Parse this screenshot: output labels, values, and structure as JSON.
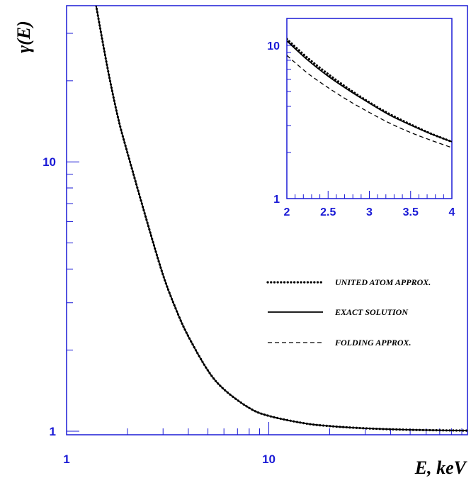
{
  "chart_data": [
    {
      "type": "line",
      "xlabel": "E, keV",
      "ylabel": "γ(E)",
      "xscale": "log",
      "yscale": "log",
      "xlim": [
        1,
        96
      ],
      "ylim": [
        0.97,
        38
      ],
      "xticks": [
        {
          "value": 1,
          "label": "1"
        },
        {
          "value": 10,
          "label": "10"
        }
      ],
      "yticks": [
        {
          "value": 1,
          "label": "1"
        },
        {
          "value": 10,
          "label": "10"
        }
      ],
      "grid": false,
      "legend_position": "right",
      "series": [
        {
          "name": "UNITED ATOM APPROX.",
          "style": "dotted",
          "x": [
            1.4,
            1.6,
            1.8,
            2.0,
            2.5,
            3.0,
            3.5,
            4.0,
            5.0,
            6.0,
            8.0,
            10,
            15,
            20,
            30,
            50,
            96
          ],
          "y": [
            38,
            22,
            14.5,
            10.8,
            6.0,
            3.8,
            2.8,
            2.25,
            1.68,
            1.43,
            1.22,
            1.14,
            1.07,
            1.045,
            1.025,
            1.012,
            1.005
          ]
        },
        {
          "name": "EXACT SOLUTION",
          "style": "solid",
          "x": [
            1.4,
            1.6,
            1.8,
            2.0,
            2.5,
            3.0,
            3.5,
            4.0,
            5.0,
            6.0,
            8.0,
            10,
            15,
            20,
            30,
            50,
            96
          ],
          "y": [
            38,
            22,
            14.5,
            10.8,
            6.0,
            3.8,
            2.8,
            2.25,
            1.68,
            1.43,
            1.22,
            1.14,
            1.07,
            1.045,
            1.025,
            1.012,
            1.005
          ]
        },
        {
          "name": "FOLDING APPROX.",
          "style": "dashed",
          "x": [
            1.4,
            1.6,
            1.8,
            2.0,
            2.5,
            3.0,
            3.5,
            4.0,
            5.0,
            6.0,
            8.0,
            10,
            15,
            20,
            30,
            50,
            96
          ],
          "y": [
            38,
            22,
            14.5,
            10.8,
            6.0,
            3.8,
            2.8,
            2.25,
            1.68,
            1.43,
            1.22,
            1.14,
            1.07,
            1.045,
            1.025,
            1.012,
            1.005
          ]
        }
      ]
    },
    {
      "type": "line",
      "xscale": "linear",
      "yscale": "log",
      "xlim": [
        2,
        4
      ],
      "ylim": [
        1,
        15
      ],
      "xticks": [
        {
          "value": 2,
          "label": "2"
        },
        {
          "value": 2.5,
          "label": "2.5"
        },
        {
          "value": 3,
          "label": "3"
        },
        {
          "value": 3.5,
          "label": "3.5"
        },
        {
          "value": 4,
          "label": "4"
        }
      ],
      "yticks": [
        {
          "value": 1,
          "label": "1"
        },
        {
          "value": 10,
          "label": "10"
        }
      ],
      "series": [
        {
          "name": "UNITED ATOM APPROX.",
          "style": "dotted",
          "x": [
            2.0,
            2.25,
            2.5,
            2.75,
            3.0,
            3.25,
            3.5,
            3.75,
            4.0
          ],
          "y": [
            11.0,
            8.3,
            6.5,
            5.2,
            4.25,
            3.55,
            3.05,
            2.65,
            2.35
          ]
        },
        {
          "name": "EXACT SOLUTION",
          "style": "solid",
          "x": [
            2.0,
            2.25,
            2.5,
            2.75,
            3.0,
            3.25,
            3.5,
            3.75,
            4.0
          ],
          "y": [
            10.7,
            8.05,
            6.3,
            5.1,
            4.2,
            3.5,
            3.02,
            2.64,
            2.35
          ]
        },
        {
          "name": "FOLDING APPROX.",
          "style": "dashed",
          "x": [
            2.0,
            2.25,
            2.5,
            2.75,
            3.0,
            3.25,
            3.5,
            3.75,
            4.0
          ],
          "y": [
            8.6,
            6.6,
            5.3,
            4.35,
            3.65,
            3.1,
            2.7,
            2.4,
            2.15
          ]
        }
      ]
    }
  ]
}
